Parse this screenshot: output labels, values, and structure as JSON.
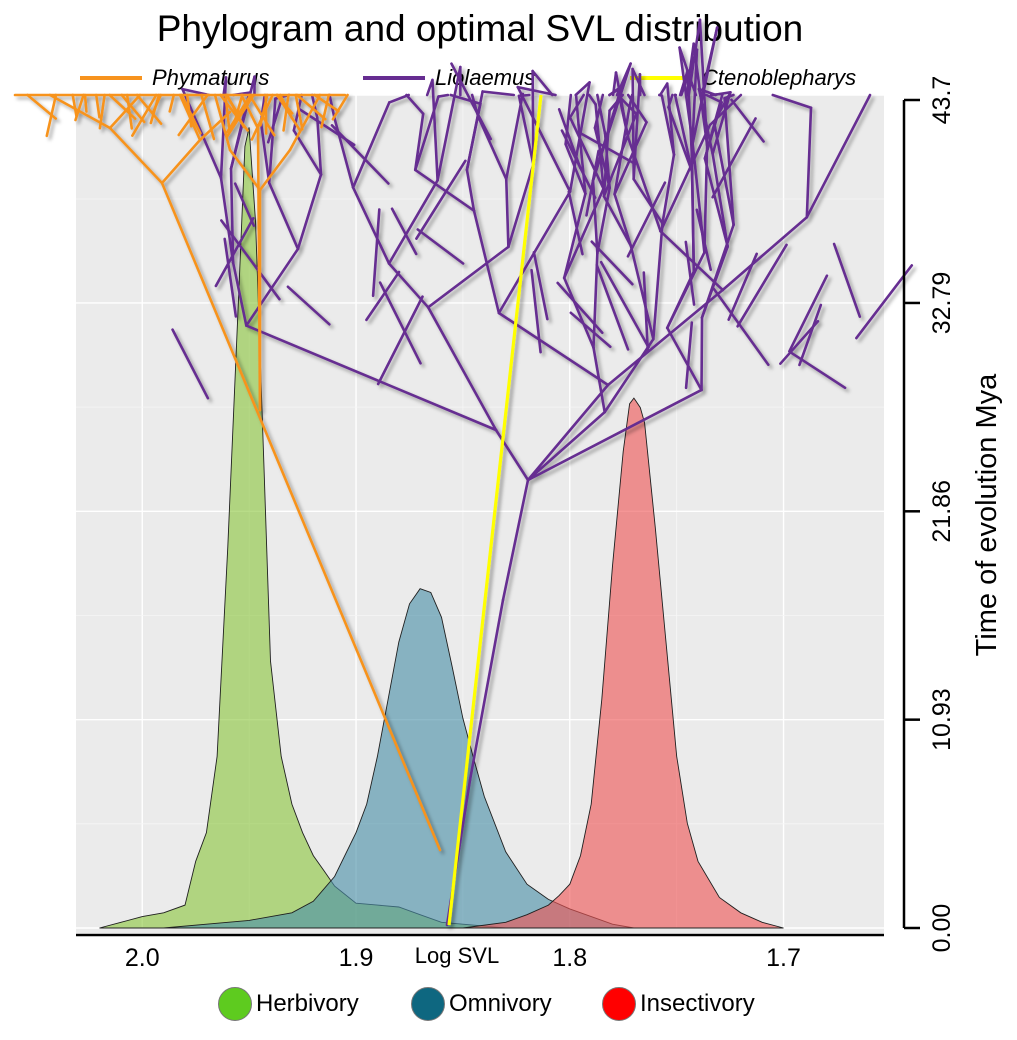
{
  "chart_data": {
    "type": "area",
    "title": "Phylogram and optimal SVL distribution",
    "xlabel": "Log SVL",
    "ylabel": "Time of evolution Mya",
    "x_reversed": true,
    "xlim": [
      2.031,
      1.653
    ],
    "x_ticks": [
      {
        "value": 2.0,
        "label": "2.0"
      },
      {
        "value": 1.9,
        "label": "1.9"
      },
      {
        "value": 1.8,
        "label": "1.8"
      },
      {
        "value": 1.7,
        "label": "1.7"
      }
    ],
    "ylim": [
      0,
      43.7
    ],
    "y_ticks": [
      {
        "value": 0,
        "label": "0.00"
      },
      {
        "value": 10.93,
        "label": "10.93"
      },
      {
        "value": 21.86,
        "label": "21.86"
      },
      {
        "value": 32.79,
        "label": "32.79"
      },
      {
        "value": 43.7,
        "label": "43.7"
      }
    ],
    "density_scale_max": 43.7,
    "phylo_legend": [
      {
        "name": "Phymaturus",
        "color": "#f7931e"
      },
      {
        "name": "Liolaemus",
        "color": "#662d91"
      },
      {
        "name": "Ctenoblepharys",
        "color": "#ffff00"
      }
    ],
    "series": [
      {
        "name": "Herbivory",
        "color": "#8cc63f",
        "x": [
          2.02,
          2.01,
          2.0,
          1.99,
          1.98,
          1.975,
          1.97,
          1.965,
          1.96,
          1.955,
          1.952,
          1.95,
          1.947,
          1.943,
          1.94,
          1.935,
          1.93,
          1.925,
          1.92,
          1.915,
          1.91,
          1.9,
          1.89,
          1.88,
          1.87,
          1.86,
          1.85,
          1.84,
          1.83
        ],
        "y": [
          0,
          0.3,
          0.6,
          0.8,
          1.2,
          3.5,
          5.0,
          9.0,
          20.0,
          33.0,
          41.0,
          42.0,
          37.0,
          24.0,
          14.0,
          9.0,
          6.5,
          5.0,
          3.8,
          3.0,
          2.2,
          1.3,
          1.2,
          1.1,
          0.7,
          0.3,
          0.2,
          0.1,
          0
        ]
      },
      {
        "name": "Omnivory",
        "color": "#4b8fa8",
        "x": [
          1.99,
          1.97,
          1.95,
          1.93,
          1.92,
          1.91,
          1.9,
          1.895,
          1.89,
          1.885,
          1.88,
          1.875,
          1.87,
          1.865,
          1.86,
          1.855,
          1.85,
          1.845,
          1.84,
          1.83,
          1.82,
          1.81,
          1.8,
          1.79,
          1.78,
          1.77
        ],
        "y": [
          0,
          0.2,
          0.4,
          0.8,
          1.4,
          2.7,
          5.0,
          6.5,
          9.0,
          12.0,
          15.0,
          17.0,
          17.8,
          17.6,
          16.3,
          13.7,
          11.0,
          8.9,
          6.9,
          4.0,
          2.3,
          1.5,
          1.0,
          0.6,
          0.2,
          0
        ]
      },
      {
        "name": "Insectivory",
        "color": "#ef5656",
        "x": [
          1.85,
          1.83,
          1.82,
          1.81,
          1.805,
          1.8,
          1.795,
          1.79,
          1.785,
          1.78,
          1.775,
          1.772,
          1.77,
          1.767,
          1.765,
          1.76,
          1.755,
          1.75,
          1.745,
          1.74,
          1.73,
          1.72,
          1.71,
          1.7
        ],
        "y": [
          0,
          0.3,
          0.7,
          1.2,
          1.7,
          2.3,
          3.8,
          6.5,
          12.0,
          19.0,
          25.0,
          27.5,
          27.8,
          27.3,
          26.5,
          21.0,
          15.0,
          9.0,
          5.5,
          3.5,
          1.6,
          0.8,
          0.3,
          0
        ]
      }
    ]
  },
  "diet_legend": [
    {
      "name": "Herbivory",
      "color": "#5ecb1f"
    },
    {
      "name": "Omnivory",
      "color": "#0e6780"
    },
    {
      "name": "Insectivory",
      "color": "#ff0000"
    }
  ]
}
